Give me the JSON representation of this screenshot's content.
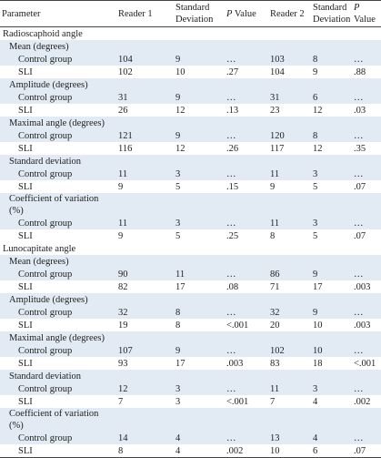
{
  "header": {
    "parameter": "Parameter",
    "reader1": "Reader 1",
    "sd1": "Standard Deviation",
    "p1": {
      "italic": "P",
      "rest": "Value"
    },
    "reader2": "Reader 2",
    "sd2": "Standard Deviation",
    "p2": {
      "italic": "P",
      "rest": "Value"
    }
  },
  "sections": [
    {
      "title": "Radioscaphoid angle",
      "groups": [
        {
          "title": "Mean (degrees)",
          "rows": [
            [
              "Control group",
              "104",
              "9",
              "…",
              "103",
              "8",
              "…"
            ],
            [
              "SLI",
              "102",
              "10",
              ".27",
              "104",
              "9",
              ".88"
            ]
          ]
        },
        {
          "title": "Amplitude (degrees)",
          "rows": [
            [
              "Control group",
              "31",
              "9",
              "…",
              "31",
              "6",
              "…"
            ],
            [
              "SLI",
              "26",
              "12",
              ".13",
              "23",
              "12",
              ".03"
            ]
          ]
        },
        {
          "title": "Maximal angle (degrees)",
          "rows": [
            [
              "Control group",
              "121",
              "9",
              "…",
              "120",
              "8",
              "…"
            ],
            [
              "SLI",
              "116",
              "12",
              ".26",
              "117",
              "12",
              ".35"
            ]
          ]
        },
        {
          "title": "Standard deviation",
          "rows": [
            [
              "Control group",
              "11",
              "3",
              "…",
              "11",
              "3",
              "…"
            ],
            [
              "SLI",
              "9",
              "5",
              ".15",
              "9",
              "5",
              ".07"
            ]
          ]
        },
        {
          "title": "Coefficient of variation (%)",
          "rows": [
            [
              "Control group",
              "11",
              "3",
              "…",
              "11",
              "3",
              "…"
            ],
            [
              "SLI",
              "9",
              "5",
              ".25",
              "8",
              "5",
              ".07"
            ]
          ]
        }
      ]
    },
    {
      "title": "Lunocapitate angle",
      "groups": [
        {
          "title": "Mean (degrees)",
          "rows": [
            [
              "Control group",
              "90",
              "11",
              "…",
              "86",
              "9",
              "…"
            ],
            [
              "SLI",
              "82",
              "17",
              ".08",
              "71",
              "17",
              ".003"
            ]
          ]
        },
        {
          "title": "Amplitude (degrees)",
          "rows": [
            [
              "Control group",
              "32",
              "8",
              "…",
              "32",
              "9",
              "…"
            ],
            [
              "SLI",
              "19",
              "8",
              "<.001",
              "20",
              "10",
              ".003"
            ]
          ]
        },
        {
          "title": "Maximal angle (degrees)",
          "rows": [
            [
              "Control group",
              "107",
              "9",
              "…",
              "102",
              "10",
              "…"
            ],
            [
              "SLI",
              "93",
              "17",
              ".003",
              "83",
              "18",
              "<.001"
            ]
          ]
        },
        {
          "title": "Standard deviation",
          "rows": [
            [
              "Control group",
              "12",
              "3",
              "…",
              "11",
              "3",
              "…"
            ],
            [
              "SLI",
              "7",
              "3",
              "<.001",
              "7",
              "4",
              ".002"
            ]
          ]
        },
        {
          "title": "Coefficient of variation (%)",
          "rows": [
            [
              "Control group",
              "14",
              "4",
              "…",
              "13",
              "4",
              "…"
            ],
            [
              "SLI",
              "8",
              "4",
              ".002",
              "10",
              "6",
              ".07"
            ]
          ]
        }
      ]
    }
  ]
}
